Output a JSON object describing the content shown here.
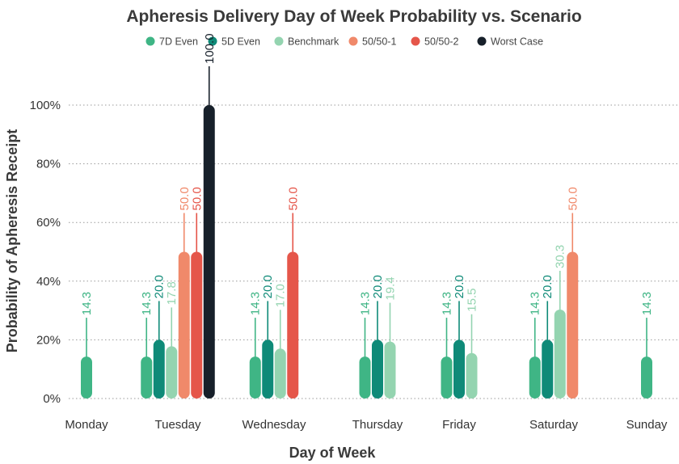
{
  "chart_data": {
    "type": "bar",
    "title": "Apheresis Delivery Day of Week Probability vs. Scenario",
    "xlabel": "Day of Week",
    "ylabel": "Probability of Apheresis Receipt",
    "categories": [
      "Monday",
      "Tuesday",
      "Wednesday",
      "Thursday",
      "Friday",
      "Saturday",
      "Sunday"
    ],
    "ylim": [
      0,
      100
    ],
    "yticks": [
      "0%",
      "20%",
      "40%",
      "60%",
      "80%",
      "100%"
    ],
    "grid": true,
    "legend_position": "top",
    "series": [
      {
        "name": "7D Even",
        "color": "#3fb585",
        "values": [
          14.3,
          14.3,
          14.3,
          14.3,
          14.3,
          14.3,
          14.3
        ]
      },
      {
        "name": "5D Even",
        "color": "#0f8a78",
        "values": [
          null,
          20.0,
          20.0,
          20.0,
          20.0,
          20.0,
          null
        ]
      },
      {
        "name": "Benchmark",
        "color": "#94d4b0",
        "values": [
          null,
          17.8,
          17.0,
          19.4,
          15.5,
          30.3,
          null
        ]
      },
      {
        "name": "50/50-1",
        "color": "#f0896a",
        "values": [
          null,
          50.0,
          null,
          null,
          null,
          50.0,
          null
        ]
      },
      {
        "name": "50/50-2",
        "color": "#e5564a",
        "values": [
          null,
          50.0,
          50.0,
          null,
          null,
          null,
          null
        ]
      },
      {
        "name": "Worst Case",
        "color": "#17202a",
        "values": [
          null,
          100.0,
          null,
          null,
          null,
          null,
          null
        ]
      }
    ]
  }
}
